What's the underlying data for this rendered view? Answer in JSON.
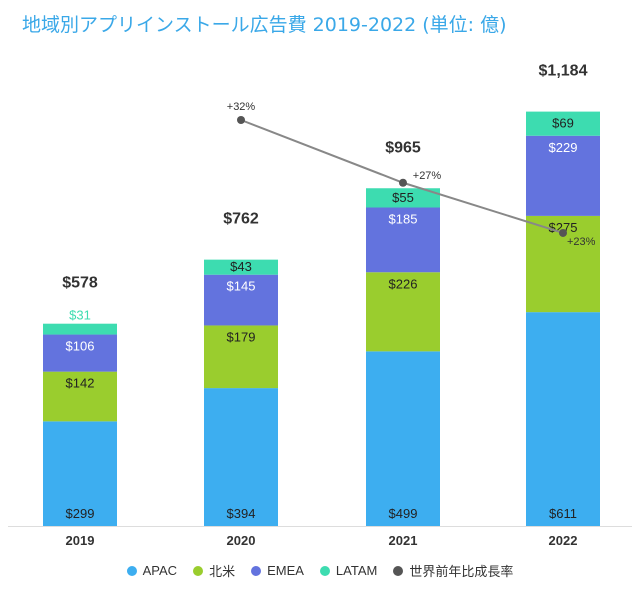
{
  "chart_data": {
    "type": "bar",
    "stacked": true,
    "title": "地域別アプリインストール広告費 2019-2022 (単位: 億)",
    "categories": [
      "2019",
      "2020",
      "2021",
      "2022"
    ],
    "series": [
      {
        "name": "APAC",
        "color": "#3daef0",
        "values": [
          299,
          394,
          499,
          611
        ],
        "labels": [
          "$299",
          "$394",
          "$499",
          "$611"
        ],
        "label_color": "#222222"
      },
      {
        "name": "北米",
        "color": "#9acd2e",
        "values": [
          142,
          179,
          226,
          275
        ],
        "labels": [
          "$142",
          "$179",
          "$226",
          "$275"
        ],
        "label_color": "#222222"
      },
      {
        "name": "EMEA",
        "color": "#6373de",
        "values": [
          106,
          145,
          185,
          229
        ],
        "labels": [
          "$106",
          "$145",
          "$185",
          "$229"
        ],
        "label_color": "#ffffff"
      },
      {
        "name": "LATAM",
        "color": "#3ddcb0",
        "values": [
          31,
          43,
          55,
          69
        ],
        "labels": [
          "$31",
          "$43",
          "$55",
          "$69"
        ],
        "label_color": "#222222"
      }
    ],
    "totals": [
      578,
      762,
      965,
      1184
    ],
    "total_labels": [
      "$578",
      "$762",
      "$965",
      "$1,184"
    ],
    "growth_line": {
      "name": "世界前年比成長率",
      "color": "#888888",
      "marker_color": "#555555",
      "categories": [
        "2020",
        "2021",
        "2022"
      ],
      "values": [
        32,
        27,
        23
      ],
      "labels": [
        "+32%",
        "+27%",
        "+23%"
      ]
    },
    "ylim": [
      0,
      1200
    ],
    "grid": false,
    "legend_position": "bottom"
  },
  "legend": {
    "items": [
      {
        "label": "APAC",
        "color": "#3daef0"
      },
      {
        "label": "北米",
        "color": "#9acd2e"
      },
      {
        "label": "EMEA",
        "color": "#6373de"
      },
      {
        "label": "LATAM",
        "color": "#3ddcb0"
      },
      {
        "label": "世界前年比成長率",
        "color": "#555555"
      }
    ]
  }
}
